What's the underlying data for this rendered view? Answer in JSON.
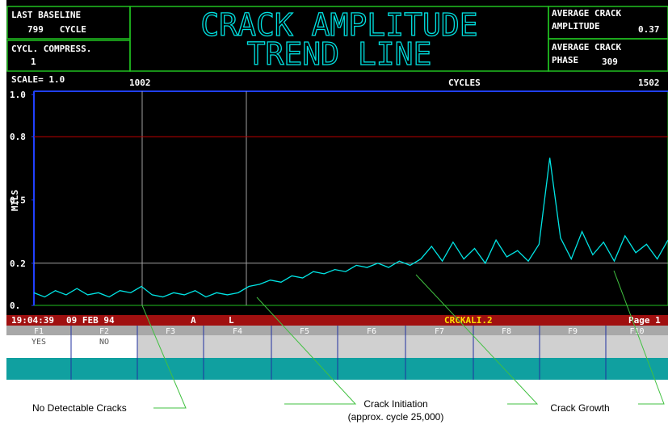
{
  "header": {
    "baseline_label": "LAST BASELINE",
    "baseline_value": "799   CYCLE",
    "compress_label": "CYCL. COMPRESS.",
    "compress_value": "1",
    "title_line1": "CRACK AMPLITUDE",
    "title_line2": "TREND LINE",
    "amp_label1": "AVERAGE CRACK",
    "amp_label2": "AMPLITUDE",
    "amp_value": "0.37",
    "phase_label1": "AVERAGE CRACK",
    "phase_label2": "PHASE",
    "phase_value": "309"
  },
  "chart_data": {
    "type": "line",
    "scale_label": "SCALE= 1.0",
    "x_start": "1002",
    "x_label": "CYCLES",
    "x_end": "1502",
    "y_label": "MILS",
    "color": "#00e5e5",
    "ylim": [
      0,
      1
    ],
    "yticks": [
      {
        "value": 1,
        "label": "1.0"
      },
      0.8,
      0.5,
      0.2,
      {
        "value": 0,
        "label": "0."
      }
    ],
    "reference_lines": [
      {
        "value": 0.8,
        "color": "#c00000"
      },
      {
        "value": 0.2,
        "color": "#a0a0a0"
      }
    ],
    "values": [
      0.06,
      0.04,
      0.07,
      0.05,
      0.08,
      0.05,
      0.06,
      0.04,
      0.07,
      0.06,
      0.09,
      0.05,
      0.04,
      0.06,
      0.05,
      0.07,
      0.04,
      0.06,
      0.05,
      0.06,
      0.09,
      0.1,
      0.12,
      0.11,
      0.14,
      0.13,
      0.16,
      0.15,
      0.17,
      0.16,
      0.19,
      0.18,
      0.2,
      0.18,
      0.21,
      0.19,
      0.22,
      0.28,
      0.21,
      0.3,
      0.22,
      0.27,
      0.2,
      0.31,
      0.23,
      0.26,
      0.21,
      0.29,
      0.7,
      0.32,
      0.22,
      0.35,
      0.24,
      0.3,
      0.21,
      0.33,
      0.25,
      0.29,
      0.22,
      0.31
    ]
  },
  "status": {
    "time": "19:04:39",
    "date": "09 FEB 94",
    "mode": "A",
    "flag": "L",
    "file": "CRCKALI.2",
    "page": "Page 1"
  },
  "function_keys": [
    "F1",
    "F2",
    "F3",
    "F4",
    "F5",
    "F6",
    "F7",
    "F8",
    "F9",
    "F10"
  ],
  "key_values": [
    "YES",
    "NO"
  ],
  "annotations": {
    "no_cracks": "No Detectable Cracks",
    "initiation": "Crack Initiation",
    "initiation_note": "(approx. cycle 25,000)",
    "growth": "Crack Growth"
  }
}
